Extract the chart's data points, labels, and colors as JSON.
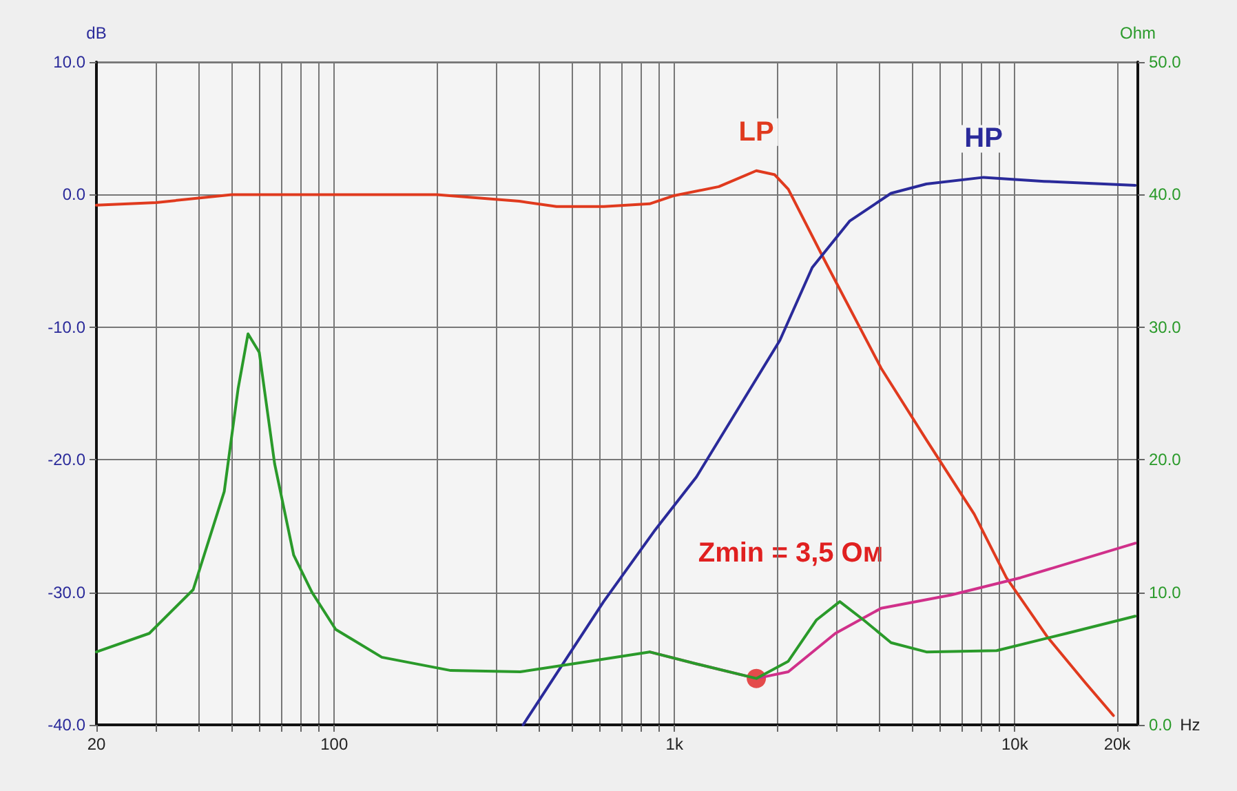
{
  "chart_data": {
    "type": "line",
    "xlabel": "Hz",
    "ylabel": "dB",
    "y2label": "Ohm",
    "annotations": [
      "Zmin = 3,5 Ом"
    ],
    "log": "x",
    "grid": true,
    "legend": false,
    "marker": "none",
    "line_style": "solid",
    "xlim": [
      20,
      23000
    ],
    "xticks": [
      {
        "value": 20,
        "label": "20"
      },
      {
        "value": 30,
        "label": null
      },
      {
        "value": 40,
        "label": null
      },
      {
        "value": 50,
        "label": null
      },
      {
        "value": 60,
        "label": null
      },
      {
        "value": 70,
        "label": null
      },
      {
        "value": 80,
        "label": null
      },
      {
        "value": 90,
        "label": null
      },
      {
        "value": 100,
        "label": "100"
      },
      {
        "value": 200,
        "label": null
      },
      {
        "value": 300,
        "label": null
      },
      {
        "value": 400,
        "label": null
      },
      {
        "value": 500,
        "label": null
      },
      {
        "value": 600,
        "label": null
      },
      {
        "value": 700,
        "label": null
      },
      {
        "value": 800,
        "label": null
      },
      {
        "value": 900,
        "label": null
      },
      {
        "value": 1000,
        "label": "1k"
      },
      {
        "value": 2000,
        "label": null
      },
      {
        "value": 3000,
        "label": null
      },
      {
        "value": 4000,
        "label": null
      },
      {
        "value": 5000,
        "label": null
      },
      {
        "value": 6000,
        "label": null
      },
      {
        "value": 7000,
        "label": null
      },
      {
        "value": 8000,
        "label": null
      },
      {
        "value": 9000,
        "label": null
      },
      {
        "value": 10000,
        "label": "10k"
      },
      {
        "value": 20000,
        "label": "20k"
      }
    ],
    "ylim": [
      -40,
      10
    ],
    "yticks": [
      {
        "value": -40,
        "label": "-40.0"
      },
      {
        "value": -30,
        "label": "-30.0"
      },
      {
        "value": -20,
        "label": "-20.0"
      },
      {
        "value": -10,
        "label": "-10.0"
      },
      {
        "value": 0,
        "label": "0.0"
      },
      {
        "value": 10,
        "label": "10.0"
      }
    ],
    "y2lim": [
      0,
      50
    ],
    "y2ticks": [
      {
        "value": 0,
        "label": "0.0"
      },
      {
        "value": 10,
        "label": "10.0"
      },
      {
        "value": 20,
        "label": "20.0"
      },
      {
        "value": 30,
        "label": "30.0"
      },
      {
        "value": 40,
        "label": "40.0"
      },
      {
        "value": 50,
        "label": "50.0"
      }
    ],
    "series": [
      {
        "name": "LP",
        "color": "#e03a1e",
        "x": [
          20,
          30,
          50,
          100,
          200,
          350,
          450,
          620,
          845,
          990,
          1350,
          1740,
          1970,
          2160,
          2780,
          4050,
          5500,
          7600,
          9450,
          12500,
          16100,
          19500
        ],
        "values": [
          -0.8,
          -0.6,
          0,
          0,
          0,
          -0.5,
          -0.9,
          -0.9,
          -0.7,
          -0.1,
          0.6,
          1.8,
          1.5,
          0.4,
          -5.1,
          -13.1,
          -18.5,
          -24.1,
          -28.9,
          -33.4,
          -36.8,
          -39.3
        ]
      },
      {
        "name": "HP",
        "color": "#2a2a9a",
        "x": [
          359,
          481,
          619,
          877,
          1160,
          2040,
          2540,
          3270,
          4330,
          5500,
          8100,
          12200,
          22600
        ],
        "values": [
          -40,
          -35,
          -30.7,
          -25.3,
          -21.3,
          -11,
          -5.5,
          -2,
          0.1,
          0.8,
          1.3,
          1,
          0.7
        ]
      },
      {
        "axis": "y2",
        "color": "#d0308a",
        "x": [
          845,
          1160,
          1740,
          2160,
          2970,
          4050,
          6500,
          10400,
          22600
        ],
        "values": [
          5.5,
          4.6,
          3.5,
          4,
          6.9,
          8.8,
          9.8,
          11.1,
          13.7
        ]
      },
      {
        "axis": "y2",
        "color": "#2a9a2a",
        "x": [
          20,
          28.6,
          38.5,
          47.5,
          52.2,
          55.8,
          60.2,
          66.8,
          76,
          86,
          101,
          138,
          220,
          352,
          563,
          845,
          1160,
          1740,
          2160,
          2610,
          3060,
          3600,
          4330,
          5500,
          8850,
          14200,
          22600
        ],
        "values": [
          5.5,
          6.9,
          10.2,
          17.6,
          25.4,
          29.5,
          28.1,
          19.7,
          12.8,
          10,
          7.2,
          5.1,
          4.1,
          4,
          4.8,
          5.5,
          4.6,
          3.5,
          4.8,
          7.9,
          9.3,
          7.9,
          6.2,
          5.5,
          5.6,
          6.9,
          8.2
        ]
      },
      {
        "type": "scatter",
        "axis": "y2",
        "color": "#e02020",
        "marker": "circle",
        "x": [
          1740
        ],
        "values": [
          3.5
        ]
      }
    ]
  }
}
